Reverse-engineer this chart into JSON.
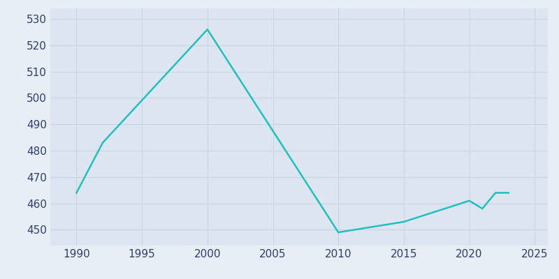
{
  "years": [
    1990,
    1992,
    2000,
    2010,
    2015,
    2020,
    2021,
    2022,
    2023
  ],
  "population": [
    464,
    483,
    526,
    449,
    453,
    461,
    458,
    464,
    464
  ],
  "line_color": "#20c0c0",
  "bg_color": "#e8eef5",
  "plot_bg_color": "#dde6f0",
  "text_color": "#2d3e6d",
  "xlim": [
    1988,
    2026
  ],
  "ylim": [
    444,
    534
  ],
  "xticks": [
    1990,
    1995,
    2000,
    2005,
    2010,
    2015,
    2020,
    2025
  ],
  "yticks": [
    450,
    460,
    470,
    480,
    490,
    500,
    510,
    520,
    530
  ],
  "grid_color": "#c8d4e4",
  "linewidth": 1.8,
  "tick_fontsize": 11
}
